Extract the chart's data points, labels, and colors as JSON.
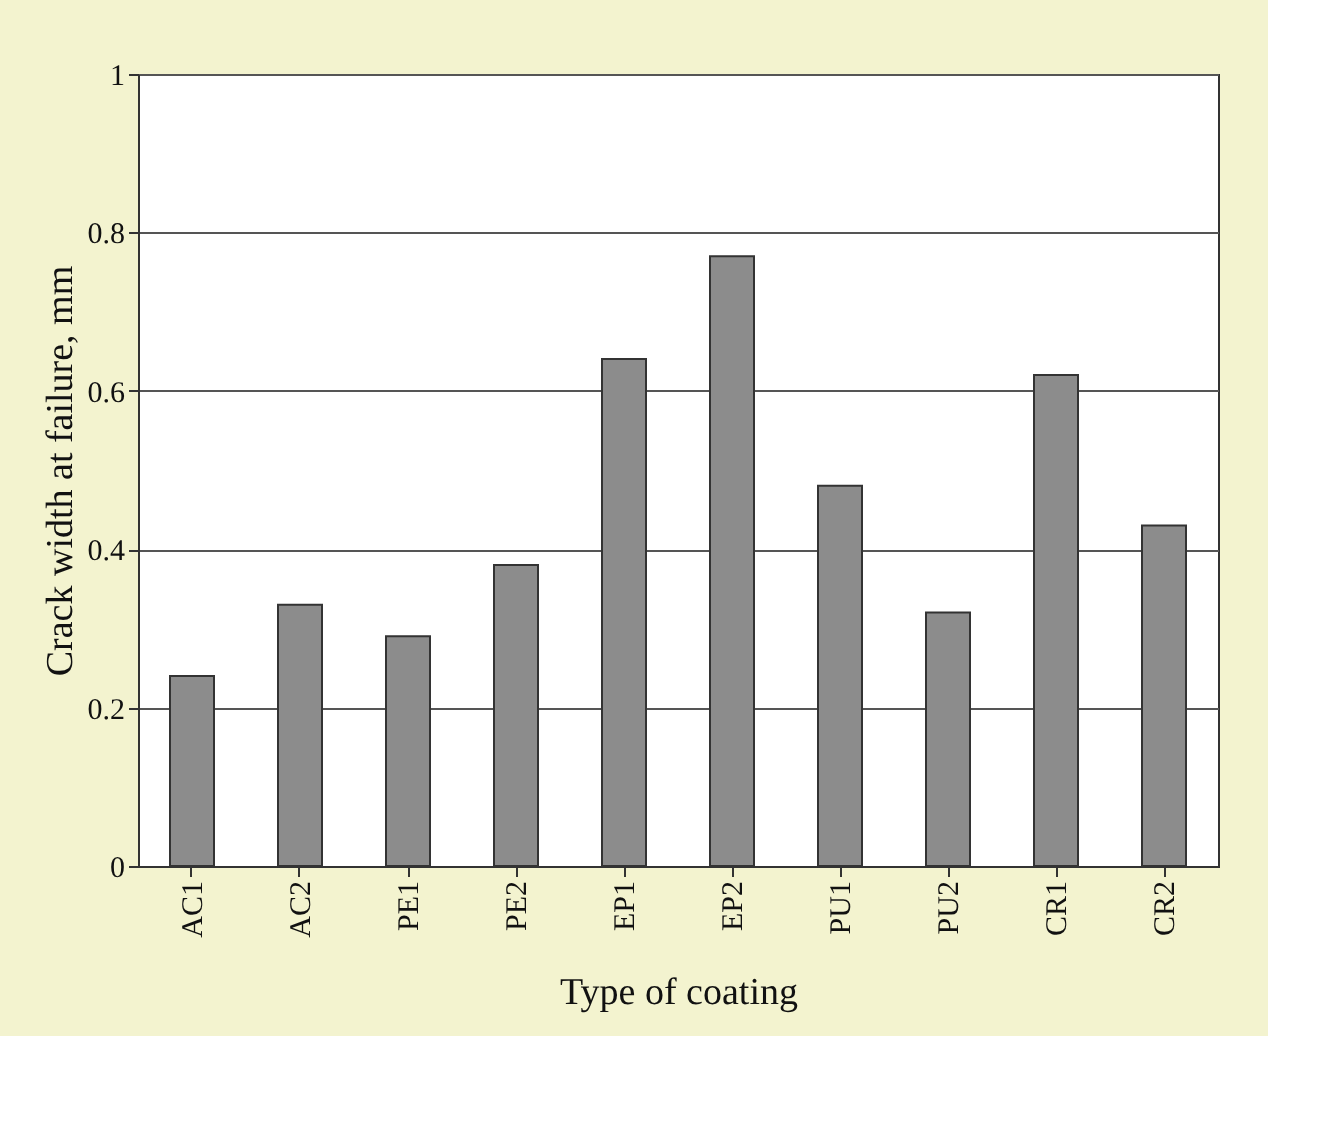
{
  "chart_data": {
    "type": "bar",
    "xlabel": "Type of coating",
    "ylabel": "Crack width at failure, mm",
    "categories": [
      "AC1",
      "AC2",
      "PE1",
      "PE2",
      "EP1",
      "EP2",
      "PU1",
      "PU2",
      "CR1",
      "CR2"
    ],
    "values": [
      0.24,
      0.33,
      0.29,
      0.38,
      0.64,
      0.77,
      0.48,
      0.32,
      0.62,
      0.43
    ],
    "color": "#8c8c8c",
    "ylim": [
      0,
      1
    ],
    "yticks": [
      0,
      0.2,
      0.4,
      0.6,
      0.8,
      1
    ],
    "grid": "y"
  }
}
